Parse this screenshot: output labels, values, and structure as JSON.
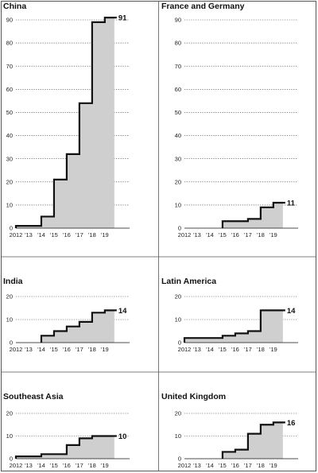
{
  "chart_data": [
    {
      "type": "area",
      "title": "China",
      "x": [
        2012,
        2013,
        2014,
        2015,
        2016,
        2017,
        2018,
        2019
      ],
      "values": [
        1,
        1,
        5,
        21,
        32,
        54,
        89,
        91
      ],
      "end_label": "91",
      "ylim": [
        0,
        90
      ],
      "yticks": [
        "0",
        "10",
        "20",
        "30",
        "40",
        "50",
        "60",
        "70",
        "80",
        "90"
      ],
      "xticks": [
        "2012",
        "'13",
        "'14",
        "'15",
        "'16",
        "'17",
        "'18",
        "'19"
      ],
      "grid": true
    },
    {
      "type": "area",
      "title": "France and Germany",
      "x": [
        2015,
        2016,
        2017,
        2018,
        2019
      ],
      "values": [
        3,
        3,
        4,
        9,
        11
      ],
      "end_label": "11",
      "ylim": [
        0,
        90
      ],
      "yticks": [
        "0",
        "10",
        "20",
        "30",
        "40",
        "50",
        "60",
        "70",
        "80",
        "90"
      ],
      "xticks": [
        "2012",
        "'13",
        "'14",
        "'15",
        "'16",
        "'17",
        "'18",
        "'19"
      ],
      "grid": true
    },
    {
      "type": "area",
      "title": "India",
      "x": [
        2014,
        2015,
        2016,
        2017,
        2018,
        2019
      ],
      "values": [
        3,
        5,
        7,
        9,
        13,
        14
      ],
      "end_label": "14",
      "ylim": [
        0,
        20
      ],
      "yticks": [
        "0",
        "10",
        "20"
      ],
      "xticks": [
        "2012",
        "'13",
        "'14",
        "'15",
        "'16",
        "'17",
        "'18",
        "'19"
      ],
      "grid": true
    },
    {
      "type": "area",
      "title": "Latin America",
      "x": [
        2012,
        2013,
        2014,
        2015,
        2016,
        2017,
        2018,
        2019
      ],
      "values": [
        2,
        2,
        2,
        3,
        4,
        5,
        14,
        14
      ],
      "end_label": "14",
      "ylim": [
        0,
        20
      ],
      "yticks": [
        "0",
        "10",
        "20"
      ],
      "xticks": [
        "2012",
        "'13",
        "'14",
        "'15",
        "'16",
        "'17",
        "'18",
        "'19"
      ],
      "grid": true
    },
    {
      "type": "area",
      "title": "Southeast Asia",
      "x": [
        2012,
        2013,
        2014,
        2015,
        2016,
        2017,
        2018,
        2019
      ],
      "values": [
        1,
        1,
        2,
        2,
        6,
        9,
        10,
        10
      ],
      "end_label": "10",
      "ylim": [
        0,
        20
      ],
      "yticks": [
        "0",
        "10",
        "20"
      ],
      "xticks": [
        "2012",
        "'13",
        "'14",
        "'15",
        "'16",
        "'17",
        "'18",
        "'19"
      ],
      "grid": true
    },
    {
      "type": "area",
      "title": "United Kingdom",
      "x": [
        2015,
        2016,
        2017,
        2018,
        2019
      ],
      "values": [
        3,
        4,
        11,
        15,
        16
      ],
      "end_label": "16",
      "ylim": [
        0,
        20
      ],
      "yticks": [
        "0",
        "10",
        "20"
      ],
      "xticks": [
        "2012",
        "'13",
        "'14",
        "'15",
        "'16",
        "'17",
        "'18",
        "'19"
      ],
      "grid": true
    }
  ],
  "colors": {
    "fill": "#cfcfcf",
    "line": "#111111",
    "grid": "#333333"
  }
}
